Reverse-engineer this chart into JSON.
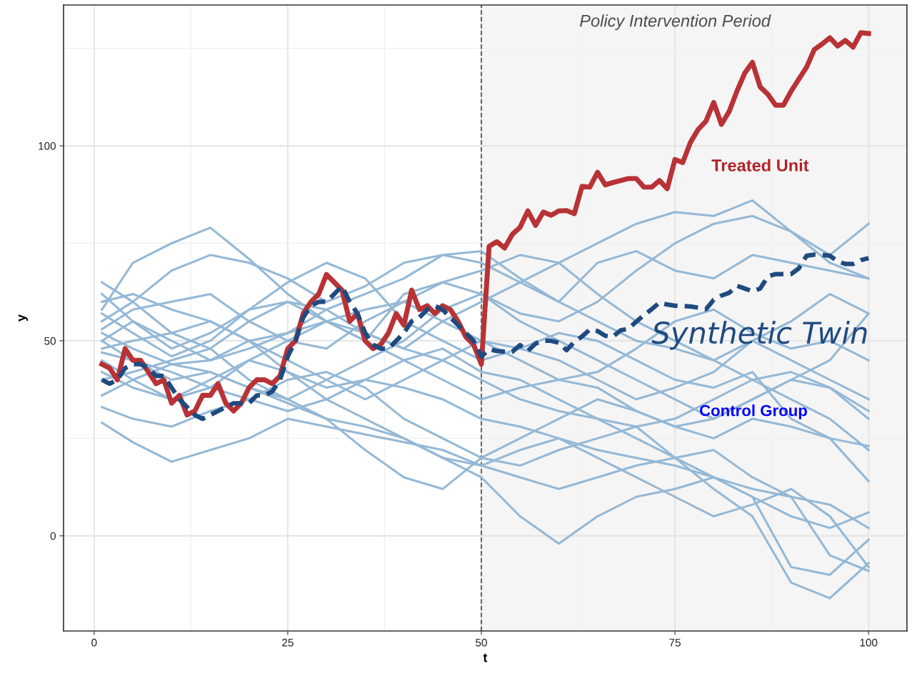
{
  "chart_data": {
    "type": "line",
    "xlabel": "t",
    "ylabel": "y",
    "x": [
      1,
      2,
      3,
      4,
      5,
      6,
      7,
      8,
      9,
      10,
      11,
      12,
      13,
      14,
      15,
      16,
      17,
      18,
      19,
      20,
      21,
      22,
      23,
      24,
      25,
      26,
      27,
      28,
      29,
      30,
      31,
      32,
      33,
      34,
      35,
      36,
      37,
      38,
      39,
      40,
      41,
      42,
      43,
      44,
      45,
      46,
      47,
      48,
      49,
      50,
      51,
      52,
      53,
      54,
      55,
      56,
      57,
      58,
      59,
      60,
      61,
      62,
      63,
      64,
      65,
      66,
      67,
      68,
      69,
      70,
      71,
      72,
      73,
      74,
      75,
      76,
      77,
      78,
      79,
      80,
      81,
      82,
      83,
      84,
      85,
      86,
      87,
      88,
      89,
      90,
      91,
      92,
      93,
      94,
      95,
      96,
      97,
      98,
      99,
      100
    ],
    "xlim": [
      -3.95,
      104.95
    ],
    "xticks": [
      0,
      25,
      50,
      75,
      100
    ],
    "ylim": [
      -24.4,
      136.1
    ],
    "yticks": [
      0,
      50,
      100
    ],
    "grid": true,
    "legend": false,
    "line_style": "solid",
    "series": [
      {
        "color": "#94b8d6",
        "x": [
          1,
          5,
          10,
          15,
          20,
          25,
          30,
          35,
          40,
          45,
          50,
          55,
          60,
          65,
          70,
          75,
          80,
          85,
          90,
          95,
          100
        ],
        "values": [
          58,
          70,
          75,
          79,
          71,
          62,
          55,
          58,
          60,
          65,
          62,
          57,
          55,
          60,
          68,
          75,
          80,
          82,
          78,
          70,
          66
        ]
      },
      {
        "color": "#94b8d6",
        "x": [
          1,
          5,
          10,
          15,
          20,
          25,
          30,
          35,
          40,
          45,
          50,
          55,
          60,
          65,
          70,
          75,
          80,
          85,
          90,
          95,
          100
        ],
        "values": [
          50,
          55,
          48,
          52,
          58,
          60,
          55,
          50,
          62,
          65,
          68,
          72,
          70,
          75,
          80,
          83,
          82,
          86,
          78,
          72,
          80
        ]
      },
      {
        "color": "#94b8d6",
        "x": [
          1,
          5,
          10,
          15,
          20,
          25,
          30,
          35,
          40,
          45,
          50,
          55,
          60,
          65,
          70,
          75,
          80,
          85,
          90,
          95,
          100
        ],
        "values": [
          55,
          60,
          68,
          72,
          70,
          66,
          60,
          64,
          70,
          72,
          73,
          66,
          60,
          70,
          73,
          68,
          66,
          72,
          70,
          68,
          66
        ]
      },
      {
        "color": "#94b8d6",
        "x": [
          1,
          5,
          10,
          15,
          20,
          25,
          30,
          35,
          40,
          45,
          50,
          55,
          60,
          65,
          70,
          75,
          80,
          85,
          90,
          95,
          100
        ],
        "values": [
          52,
          48,
          44,
          45,
          50,
          42,
          38,
          40,
          45,
          48,
          42,
          40,
          35,
          30,
          25,
          20,
          12,
          5,
          -12,
          -16,
          -7
        ]
      },
      {
        "color": "#94b8d6",
        "x": [
          1,
          5,
          10,
          15,
          20,
          25,
          30,
          35,
          40,
          45,
          50,
          55,
          60,
          65,
          70,
          75,
          80,
          85,
          90,
          95,
          100
        ],
        "values": [
          45,
          40,
          35,
          38,
          45,
          42,
          35,
          30,
          25,
          20,
          15,
          5,
          -2,
          5,
          10,
          12,
          15,
          10,
          5,
          2,
          6
        ]
      },
      {
        "color": "#94b8d6",
        "x": [
          1,
          5,
          10,
          15,
          20,
          25,
          30,
          35,
          40,
          45,
          50,
          55,
          60,
          65,
          70,
          75,
          80,
          85,
          90,
          95,
          100
        ],
        "values": [
          29,
          24,
          19,
          22,
          25,
          30,
          28,
          26,
          24,
          22,
          18,
          15,
          12,
          15,
          18,
          20,
          22,
          15,
          10,
          -5,
          -9
        ]
      },
      {
        "color": "#94b8d6",
        "x": [
          1,
          5,
          10,
          15,
          20,
          25,
          30,
          35,
          40,
          45,
          50,
          55,
          60,
          65,
          70,
          75,
          80,
          85,
          90,
          95,
          100
        ],
        "values": [
          33,
          30,
          28,
          32,
          35,
          40,
          42,
          38,
          30,
          25,
          20,
          18,
          22,
          25,
          28,
          20,
          15,
          10,
          -8,
          -10,
          -1
        ]
      },
      {
        "color": "#94b8d6",
        "x": [
          1,
          5,
          10,
          15,
          20,
          25,
          30,
          35,
          40,
          45,
          50,
          55,
          60,
          65,
          70,
          75,
          80,
          85,
          90,
          95,
          100
        ],
        "values": [
          40,
          42,
          45,
          48,
          40,
          35,
          30,
          22,
          15,
          12,
          20,
          25,
          30,
          35,
          32,
          28,
          25,
          30,
          28,
          25,
          23
        ]
      },
      {
        "color": "#94b8d6",
        "x": [
          1,
          5,
          10,
          15,
          20,
          25,
          30,
          35,
          40,
          45,
          50,
          55,
          60,
          65,
          70,
          75,
          80,
          85,
          90,
          95,
          100
        ],
        "values": [
          48,
          50,
          52,
          55,
          50,
          45,
          40,
          35,
          40,
          45,
          50,
          48,
          45,
          40,
          35,
          38,
          42,
          50,
          45,
          40,
          35
        ]
      },
      {
        "color": "#94b8d6",
        "x": [
          1,
          5,
          10,
          15,
          20,
          25,
          30,
          35,
          40,
          45,
          50,
          55,
          60,
          65,
          70,
          75,
          80,
          85,
          90,
          95,
          100
        ],
        "values": [
          62,
          55,
          50,
          45,
          48,
          52,
          55,
          50,
          45,
          40,
          35,
          38,
          40,
          38,
          32,
          28,
          30,
          35,
          40,
          38,
          30
        ]
      },
      {
        "color": "#94b8d6",
        "x": [
          1,
          5,
          10,
          15,
          20,
          25,
          30,
          35,
          40,
          45,
          50,
          55,
          60,
          65,
          70,
          75,
          80,
          85,
          90,
          95,
          100
        ],
        "values": [
          65,
          60,
          52,
          48,
          55,
          60,
          58,
          52,
          48,
          55,
          60,
          65,
          70,
          62,
          55,
          50,
          45,
          40,
          35,
          30,
          22
        ]
      },
      {
        "color": "#94b8d6",
        "x": [
          1,
          5,
          10,
          15,
          20,
          25,
          30,
          35,
          40,
          45,
          50,
          55,
          60,
          65,
          70,
          75,
          80,
          85,
          90,
          95,
          100
        ],
        "values": [
          53,
          58,
          60,
          62,
          55,
          50,
          48,
          55,
          60,
          55,
          50,
          45,
          40,
          42,
          48,
          55,
          58,
          52,
          48,
          50,
          45
        ]
      },
      {
        "color": "#94b8d6",
        "x": [
          1,
          5,
          10,
          15,
          20,
          25,
          30,
          35,
          40,
          45,
          50,
          55,
          60,
          65,
          70,
          75,
          80,
          85,
          90,
          95,
          100
        ],
        "values": [
          47,
          45,
          42,
          38,
          35,
          32,
          35,
          40,
          38,
          35,
          30,
          28,
          25,
          22,
          20,
          18,
          15,
          12,
          10,
          8,
          2
        ]
      },
      {
        "color": "#94b8d6",
        "x": [
          1,
          5,
          10,
          15,
          20,
          25,
          30,
          35,
          40,
          45,
          50,
          55,
          60,
          65,
          70,
          75,
          80,
          85,
          90,
          95,
          100
        ],
        "values": [
          42,
          38,
          35,
          40,
          45,
          50,
          55,
          52,
          48,
          45,
          40,
          35,
          32,
          30,
          28,
          30,
          35,
          40,
          42,
          38,
          32
        ]
      },
      {
        "color": "#94b8d6",
        "x": [
          1,
          5,
          10,
          15,
          20,
          25,
          30,
          35,
          40,
          45,
          50,
          55,
          60,
          65,
          70,
          75,
          80,
          85,
          90,
          95,
          100
        ],
        "values": [
          57,
          52,
          46,
          50,
          58,
          65,
          70,
          66,
          55,
          50,
          45,
          48,
          52,
          50,
          45,
          40,
          38,
          42,
          30,
          25,
          14
        ]
      },
      {
        "color": "#94b8d6",
        "x": [
          1,
          5,
          10,
          15,
          20,
          25,
          30,
          35,
          40,
          45,
          50,
          55,
          60,
          65,
          70,
          75,
          80,
          85,
          90,
          95,
          100
        ],
        "values": [
          36,
          40,
          44,
          42,
          38,
          35,
          40,
          45,
          50,
          58,
          62,
          55,
          50,
          45,
          40,
          35,
          30,
          35,
          40,
          45,
          57
        ]
      },
      {
        "color": "#94b8d6",
        "x": [
          1,
          5,
          10,
          15,
          20,
          25,
          30,
          35,
          40,
          45,
          50,
          55,
          60,
          65,
          70,
          75,
          80,
          85,
          90,
          95,
          100
        ],
        "values": [
          50,
          45,
          40,
          42,
          38,
          34,
          30,
          28,
          25,
          20,
          18,
          22,
          25,
          20,
          15,
          10,
          5,
          8,
          12,
          5,
          -8
        ]
      },
      {
        "color": "#94b8d6",
        "x": [
          1,
          5,
          10,
          15,
          20,
          25,
          30,
          35,
          40,
          45,
          50,
          55,
          60,
          65,
          70,
          75,
          80,
          85,
          90,
          95,
          100
        ],
        "values": [
          60,
          62,
          58,
          55,
          50,
          52,
          58,
          62,
          66,
          72,
          70,
          65,
          60,
          55,
          50,
          48,
          45,
          50,
          55,
          62,
          57
        ]
      },
      {
        "name": "Treated Unit",
        "color": "#b83236",
        "line_style": "solid",
        "values": [
          44,
          43,
          40,
          48,
          45,
          45,
          42,
          39,
          40,
          34,
          36,
          31,
          32,
          36,
          36,
          39,
          34,
          32,
          34,
          38,
          40,
          40,
          39,
          41,
          48,
          50,
          57,
          60,
          62,
          67,
          65,
          63,
          55,
          57,
          50,
          48,
          49,
          52,
          57,
          54,
          63,
          58,
          59,
          57,
          59,
          58,
          55,
          51,
          49,
          44,
          74.2,
          75.4,
          73.8,
          77.3,
          79.1,
          83.3,
          79.6,
          83.0,
          82.2,
          83.3,
          83.4,
          82.6,
          89.6,
          89.4,
          93.2,
          90.0,
          90.6,
          91.1,
          91.6,
          91.6,
          89.4,
          89.4,
          91.1,
          89.0,
          96.5,
          95.7,
          100.9,
          104.2,
          106.3,
          111.1,
          105.5,
          108.8,
          114.0,
          118.6,
          121.4,
          115.1,
          113.2,
          110.4,
          110.4,
          114.0,
          117.1,
          120.2,
          124.7,
          126.1,
          127.7,
          125.6,
          127.0,
          125.3,
          129.0,
          128.8
        ]
      },
      {
        "name": "Synthetic Twin",
        "color": "#1f4a80",
        "line_style": "dashed",
        "values": [
          40,
          39,
          40,
          43,
          44,
          44,
          43,
          41,
          41,
          38,
          35,
          33,
          31,
          30,
          31,
          32,
          33,
          34,
          34,
          34,
          36,
          36,
          37,
          40,
          46,
          50,
          56,
          59,
          60,
          60,
          62,
          64,
          60,
          57,
          52,
          49,
          48,
          48,
          50,
          52,
          55,
          56,
          58,
          59,
          58,
          56,
          54,
          52,
          50,
          46,
          47.8,
          47.4,
          47.2,
          47.2,
          48.9,
          47.4,
          49.3,
          50.0,
          50.0,
          49.5,
          47.6,
          49.7,
          51.1,
          52.9,
          52.5,
          51.3,
          51.1,
          52.7,
          53.1,
          54.9,
          56.6,
          58.1,
          59.8,
          59.3,
          59.0,
          58.9,
          58.8,
          58.5,
          58.1,
          60.5,
          61.6,
          62.3,
          64.1,
          63.4,
          62.7,
          63.4,
          66.5,
          67.1,
          67.1,
          67.1,
          68.6,
          71.8,
          72.1,
          72.0,
          71.8,
          70.4,
          69.7,
          69.7,
          70.7,
          71.2
        ]
      }
    ],
    "ref_lines": [
      {
        "axis": "x",
        "value": 50,
        "color": "#666666",
        "line_style": "dashed"
      }
    ],
    "bands": [
      {
        "axis": "x",
        "from": 50,
        "to": 104.95,
        "label": "Policy Intervention Period",
        "color": "#f5f5f5"
      }
    ],
    "annotations": [
      "Control Group"
    ]
  }
}
